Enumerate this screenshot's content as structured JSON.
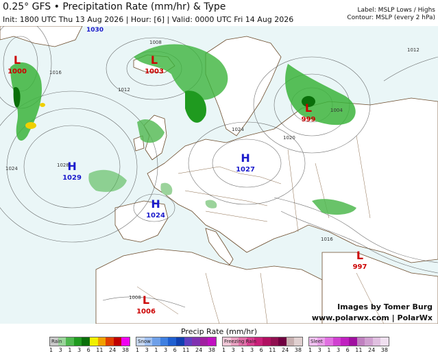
{
  "header": {
    "title": "0.25° GFS • Precipitation Rate (mm/hr) & Type",
    "subtitle": "Init: 1800 UTC Thu 13 Aug 2026 | Hour: [6] | Valid: 0000 UTC Fri 14 Aug 2026",
    "legend_line1": "Label: MSLP Lows / Highs",
    "legend_line2": "Contour: MSLP (every 2 hPa)"
  },
  "map": {
    "pressure_centers": [
      {
        "type": "L",
        "value": "1000",
        "color": "#cc0000"
      },
      {
        "type": "L",
        "value": "1003",
        "color": "#cc0000"
      },
      {
        "type": "L",
        "value": "999",
        "color": "#cc0000"
      },
      {
        "type": "L",
        "value": "997",
        "color": "#cc0000"
      },
      {
        "type": "L",
        "value": "1006",
        "color": "#cc0000"
      },
      {
        "type": "H",
        "value": "1029",
        "color": "#1a1acc"
      },
      {
        "type": "H",
        "value": "1027",
        "color": "#1a1acc"
      },
      {
        "type": "H",
        "value": "1024",
        "color": "#1a1acc"
      }
    ],
    "contour_labels": [
      "1030",
      "1008",
      "1016",
      "1012",
      "1024",
      "1028",
      "1020",
      "1004",
      "1012",
      "1008",
      "1024",
      "1016"
    ],
    "credit_line1": "Images by Tomer Burg",
    "credit_line2": "www.polarwx.com | PolarWx"
  },
  "legend": {
    "title": "Precip Rate (mm/hr)",
    "bars": [
      {
        "name": "Rain",
        "colors": [
          "#c8c8c8",
          "#9bd39b",
          "#4fb84f",
          "#1f9a1f",
          "#0a6f0a",
          "#f0f000",
          "#f0a000",
          "#e04000",
          "#c00000",
          "#f000f0"
        ],
        "ticks": [
          "1",
          "3",
          "1",
          "3",
          "6",
          "11",
          "24",
          "38"
        ]
      },
      {
        "name": "Snow",
        "colors": [
          "#c8d8f0",
          "#a0c0f0",
          "#6fa0e8",
          "#3f7fe0",
          "#1f5fd0",
          "#1040b0",
          "#6040c0",
          "#8030b0",
          "#a020a0",
          "#c010c0"
        ],
        "ticks": [
          "1",
          "3",
          "1",
          "3",
          "6",
          "11",
          "24",
          "38"
        ]
      },
      {
        "name": "Freezing Rain",
        "colors": [
          "#f0c8d8",
          "#e8a0c0",
          "#e070a8",
          "#d84090",
          "#c82078",
          "#b01060",
          "#901050",
          "#700040",
          "#c8b0b0",
          "#e0d0d0"
        ],
        "ticks": [
          "1",
          "3",
          "1",
          "3",
          "6",
          "11",
          "24",
          "38"
        ]
      },
      {
        "name": "Sleet",
        "colors": [
          "#f0c0f0",
          "#e8a0e8",
          "#e070e0",
          "#d040d0",
          "#c020c0",
          "#a010a0",
          "#c080c0",
          "#d0a0d0",
          "#e0c0e0",
          "#f0e0f0"
        ],
        "ticks": [
          "1",
          "3",
          "1",
          "3",
          "6",
          "11",
          "24",
          "38"
        ]
      }
    ]
  }
}
